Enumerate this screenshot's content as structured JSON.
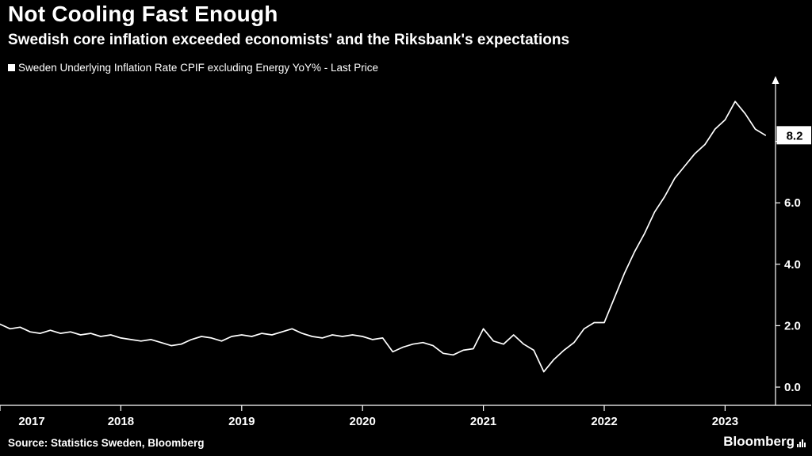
{
  "header": {
    "title": "Not Cooling Fast Enough",
    "subtitle": "Swedish core inflation exceeded economists' and the Riksbank's expectations"
  },
  "legend": {
    "label": "Sweden Underlying Inflation Rate CPIF excluding Energy YoY% - Last Price",
    "marker_color": "#ffffff"
  },
  "chart_data": {
    "type": "line",
    "title": "Not Cooling Fast Enough",
    "series_name": "Sweden Underlying Inflation Rate CPIF excluding Energy YoY%",
    "frequency": "monthly",
    "x_start": "2017-01",
    "x_end": "2023-05",
    "years": [
      "2017",
      "2018",
      "2019",
      "2020",
      "2021",
      "2022",
      "2023"
    ],
    "values": [
      2.05,
      1.9,
      1.95,
      1.8,
      1.75,
      1.85,
      1.75,
      1.8,
      1.7,
      1.75,
      1.65,
      1.7,
      1.6,
      1.55,
      1.5,
      1.55,
      1.45,
      1.35,
      1.4,
      1.55,
      1.65,
      1.6,
      1.5,
      1.65,
      1.7,
      1.65,
      1.75,
      1.7,
      1.8,
      1.9,
      1.75,
      1.65,
      1.6,
      1.7,
      1.65,
      1.7,
      1.65,
      1.55,
      1.6,
      1.15,
      1.3,
      1.4,
      1.45,
      1.35,
      1.1,
      1.05,
      1.2,
      1.25,
      1.9,
      1.5,
      1.4,
      1.7,
      1.4,
      1.2,
      0.5,
      0.9,
      1.2,
      1.45,
      1.9,
      2.1,
      2.1,
      2.9,
      3.7,
      4.4,
      5.0,
      5.7,
      6.2,
      6.8,
      7.2,
      7.6,
      7.9,
      8.4,
      8.7,
      9.3,
      8.9,
      8.4,
      8.2
    ],
    "last_price": 8.2,
    "last_price_label": "8.2",
    "y_ticks": [
      0,
      2,
      4,
      6,
      8
    ],
    "y_tick_labels": [
      "0.0",
      "2.0",
      "4.0",
      "6.0"
    ],
    "ylim": [
      -0.6,
      9.9
    ],
    "line_color": "#ffffff",
    "background": "#000000",
    "grid": "off",
    "y_axis_position": "right",
    "legend_position": "top-left"
  },
  "footer": {
    "source": "Source: Statistics Sweden, Bloomberg",
    "brand": "Bloomberg"
  }
}
